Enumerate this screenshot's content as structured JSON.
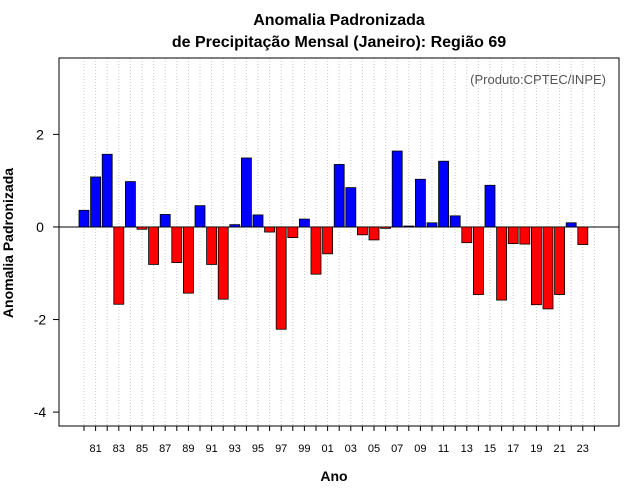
{
  "chart_data": {
    "type": "bar",
    "title": "Anomalia Padronizada",
    "subtitle": "de Precipitação Mensal (Janeiro): Região 69",
    "xlabel": "Ano",
    "ylabel": "Anomalia Padronizada",
    "credit": "(Produto:CPTEC/INPE)",
    "ylim": [
      -4.3,
      3.65
    ],
    "yticks": [
      -4,
      -2,
      0,
      2
    ],
    "xtick_labels": [
      "81",
      "83",
      "85",
      "87",
      "89",
      "91",
      "93",
      "95",
      "97",
      "99",
      "01",
      "03",
      "05",
      "07",
      "09",
      "11",
      "13",
      "15",
      "17",
      "19",
      "21",
      "23"
    ],
    "grid": "vertical dotted",
    "positive_color": "#0000ff",
    "negative_color": "#ff0000",
    "categories": [
      "1980",
      "1981",
      "1982",
      "1983",
      "1984",
      "1985",
      "1986",
      "1987",
      "1988",
      "1989",
      "1990",
      "1991",
      "1992",
      "1993",
      "1994",
      "1995",
      "1996",
      "1997",
      "1998",
      "1999",
      "2000",
      "2001",
      "2002",
      "2003",
      "2004",
      "2005",
      "2006",
      "2007",
      "2008",
      "2009",
      "2010",
      "2011",
      "2012",
      "2013",
      "2014",
      "2015",
      "2016",
      "2017",
      "2018",
      "2019",
      "2020",
      "2021",
      "2022",
      "2023",
      "2024"
    ],
    "values": [
      0.36,
      1.08,
      1.57,
      -1.67,
      0.98,
      -0.05,
      -0.81,
      0.27,
      -0.77,
      -1.43,
      0.46,
      -0.81,
      -1.56,
      0.05,
      1.49,
      0.26,
      -0.11,
      -2.21,
      -0.23,
      0.17,
      -1.02,
      -0.58,
      1.35,
      0.85,
      -0.17,
      -0.28,
      -0.03,
      1.64,
      0.02,
      1.03,
      0.09,
      1.42,
      0.24,
      -0.34,
      -1.46,
      0.9,
      -1.58,
      -0.36,
      -0.37,
      -1.68,
      -1.77,
      -1.46,
      0.09,
      -0.38,
      0
    ]
  }
}
